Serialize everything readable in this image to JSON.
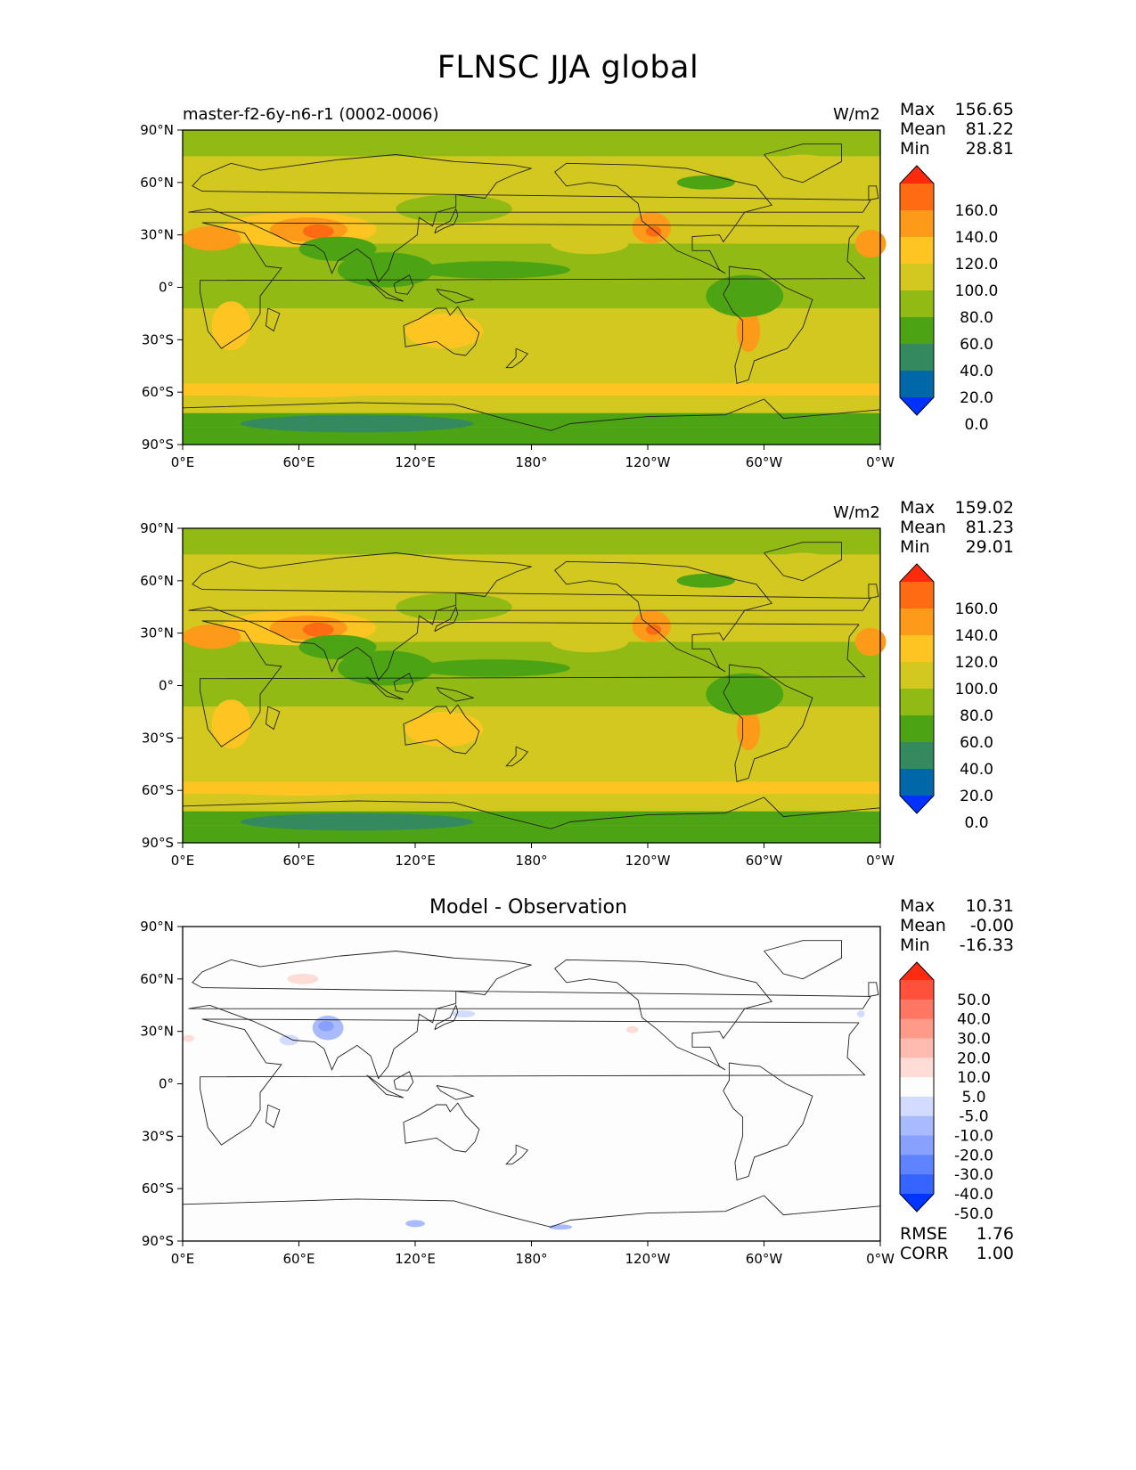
{
  "suptitle": "FLNSC JJA global",
  "colors": {
    "abs_levels": [
      "#0032ff",
      "#0067a8",
      "#34895f",
      "#4ca414",
      "#91bb14",
      "#d2c820",
      "#fec522",
      "#fe9a19",
      "#ff6b12",
      "#ff2a0c"
    ],
    "diff_levels": [
      "#0035ff",
      "#3664ff",
      "#5f83ff",
      "#88a1ff",
      "#aabaff",
      "#d3dcff",
      "#fdfdfd",
      "#ffdcd6",
      "#ffbbb0",
      "#ff9a88",
      "#ff7763",
      "#ff503b",
      "#ff2a10"
    ],
    "coast": "#222222"
  },
  "panels": [
    {
      "id": "test",
      "title_left": "master-f2-6y-n6-r1 (0002-0006)",
      "title_center": "",
      "units": "W/m2",
      "stats": {
        "max_label": "Max",
        "max": "156.65",
        "mean_label": "Mean",
        "mean": "81.22",
        "min_label": "Min",
        "min": "28.81"
      },
      "colorbar": {
        "type": "abs",
        "ticks": [
          "160.0",
          "140.0",
          "120.0",
          "100.0",
          "80.0",
          "60.0",
          "40.0",
          "20.0",
          "0.0"
        ]
      }
    },
    {
      "id": "ref",
      "title_left": "",
      "title_center": "",
      "units": "W/m2",
      "stats": {
        "max_label": "Max",
        "max": "159.02",
        "mean_label": "Mean",
        "mean": "81.23",
        "min_label": "Min",
        "min": "29.01"
      },
      "colorbar": {
        "type": "abs",
        "ticks": [
          "160.0",
          "140.0",
          "120.0",
          "100.0",
          "80.0",
          "60.0",
          "40.0",
          "20.0",
          "0.0"
        ]
      }
    },
    {
      "id": "diff",
      "title_left": "",
      "title_center": "Model - Observation",
      "units": "",
      "stats": {
        "max_label": "Max",
        "max": "10.31",
        "mean_label": "Mean",
        "mean": "-0.00",
        "min_label": "Min",
        "min": "-16.33"
      },
      "colorbar": {
        "type": "diff",
        "ticks": [
          "50.0",
          "40.0",
          "30.0",
          "20.0",
          "10.0",
          "5.0",
          "-5.0",
          "-10.0",
          "-20.0",
          "-30.0",
          "-40.0",
          "-50.0"
        ]
      },
      "metrics": {
        "rmse_label": "RMSE",
        "rmse": "1.76",
        "corr_label": "CORR",
        "corr": "1.00"
      }
    }
  ],
  "chart_data": [
    {
      "type": "heatmap",
      "title": "master-f2-6y-n6-r1 (0002-0006)",
      "units": "W/m2",
      "x_ticks": [
        "0°E",
        "60°E",
        "120°E",
        "180°",
        "120°W",
        "60°W",
        "0°W"
      ],
      "y_ticks": [
        "90°N",
        "60°N",
        "30°N",
        "0°",
        "30°S",
        "60°S",
        "90°S"
      ],
      "xlim": [
        0,
        360
      ],
      "ylim": [
        -90,
        90
      ],
      "levels": [
        0,
        20,
        40,
        60,
        80,
        100,
        120,
        140,
        160
      ],
      "stats": {
        "max": 156.65,
        "mean": 81.22,
        "min": 28.81
      }
    },
    {
      "type": "heatmap",
      "title": "",
      "units": "W/m2",
      "x_ticks": [
        "0°E",
        "60°E",
        "120°E",
        "180°",
        "120°W",
        "60°W",
        "0°W"
      ],
      "y_ticks": [
        "90°N",
        "60°N",
        "30°N",
        "0°",
        "30°S",
        "60°S",
        "90°S"
      ],
      "xlim": [
        0,
        360
      ],
      "ylim": [
        -90,
        90
      ],
      "levels": [
        0,
        20,
        40,
        60,
        80,
        100,
        120,
        140,
        160
      ],
      "stats": {
        "max": 159.02,
        "mean": 81.23,
        "min": 29.01
      }
    },
    {
      "type": "heatmap",
      "title": "Model - Observation",
      "units": "",
      "x_ticks": [
        "0°E",
        "60°E",
        "120°E",
        "180°",
        "120°W",
        "60°W",
        "0°W"
      ],
      "y_ticks": [
        "90°N",
        "60°N",
        "30°N",
        "0°",
        "30°S",
        "60°S",
        "90°S"
      ],
      "xlim": [
        0,
        360
      ],
      "ylim": [
        -90,
        90
      ],
      "levels": [
        -50,
        -40,
        -30,
        -20,
        -10,
        -5,
        5,
        10,
        20,
        30,
        40,
        50
      ],
      "stats": {
        "max": 10.31,
        "mean": -0.0,
        "min": -16.33
      },
      "rmse": 1.76,
      "corr": 1.0
    }
  ]
}
